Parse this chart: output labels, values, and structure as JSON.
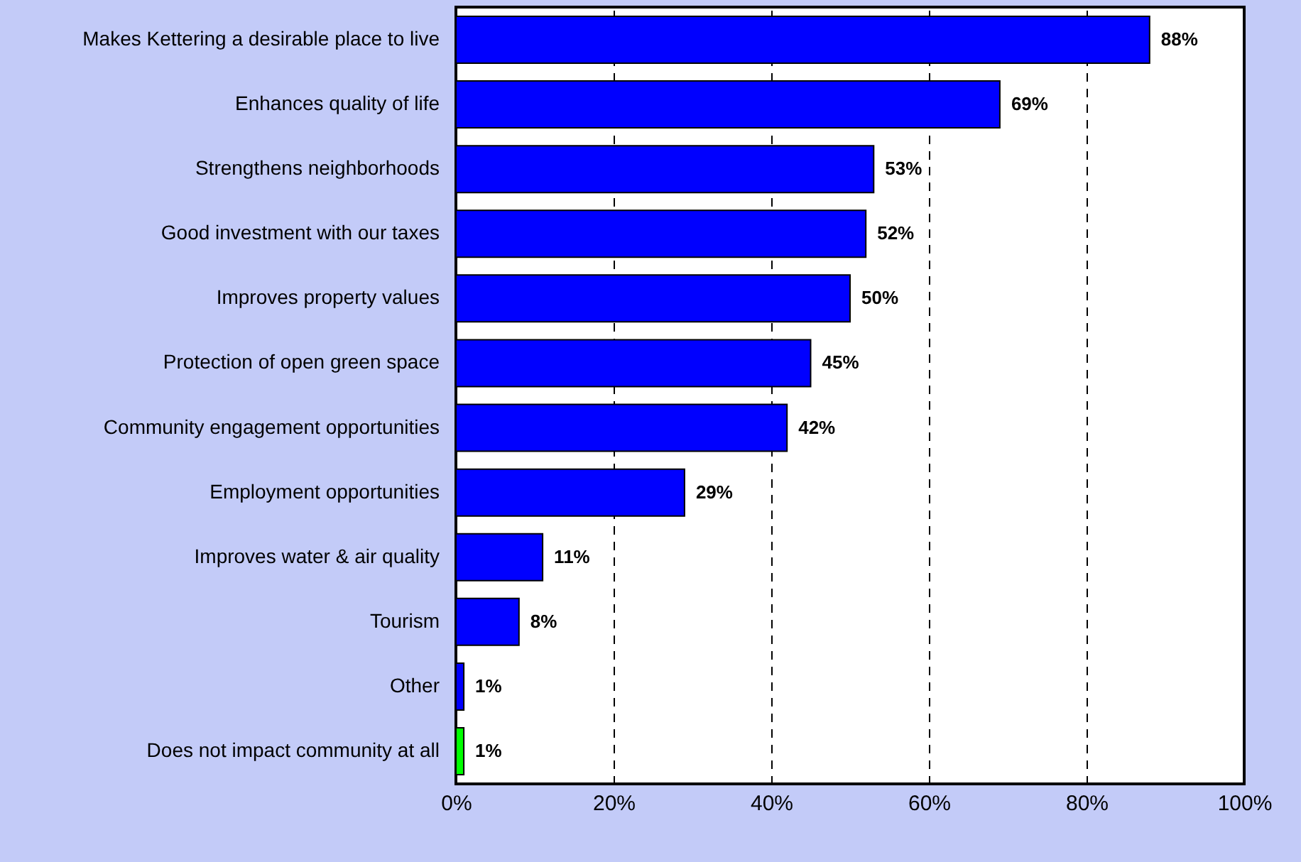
{
  "chart_data": {
    "type": "bar",
    "orientation": "horizontal",
    "categories": [
      "Makes Kettering a desirable place to live",
      "Enhances quality of life",
      "Strengthens neighborhoods",
      "Good investment with our taxes",
      "Improves property values",
      "Protection of open green space",
      "Community engagement opportunities",
      "Employment opportunities",
      "Improves water & air quality",
      "Tourism",
      "Other",
      "Does not impact community at all"
    ],
    "values": [
      88,
      69,
      53,
      52,
      50,
      45,
      42,
      29,
      11,
      8,
      1,
      1
    ],
    "value_labels": [
      "88%",
      "69%",
      "53%",
      "52%",
      "50%",
      "45%",
      "42%",
      "29%",
      "11%",
      "8%",
      "1%",
      "1%"
    ],
    "colors": [
      "#0000ff",
      "#0000ff",
      "#0000ff",
      "#0000ff",
      "#0000ff",
      "#0000ff",
      "#0000ff",
      "#0000ff",
      "#0000ff",
      "#0000ff",
      "#0000ff",
      "#00ff00"
    ],
    "xlim": [
      0,
      100
    ],
    "xticks": [
      {
        "value": 0,
        "label": "0%"
      },
      {
        "value": 20,
        "label": "20%"
      },
      {
        "value": 40,
        "label": "40%"
      },
      {
        "value": 60,
        "label": "60%"
      },
      {
        "value": 80,
        "label": "80%"
      },
      {
        "value": 100,
        "label": "100%"
      }
    ],
    "grid": "x"
  }
}
